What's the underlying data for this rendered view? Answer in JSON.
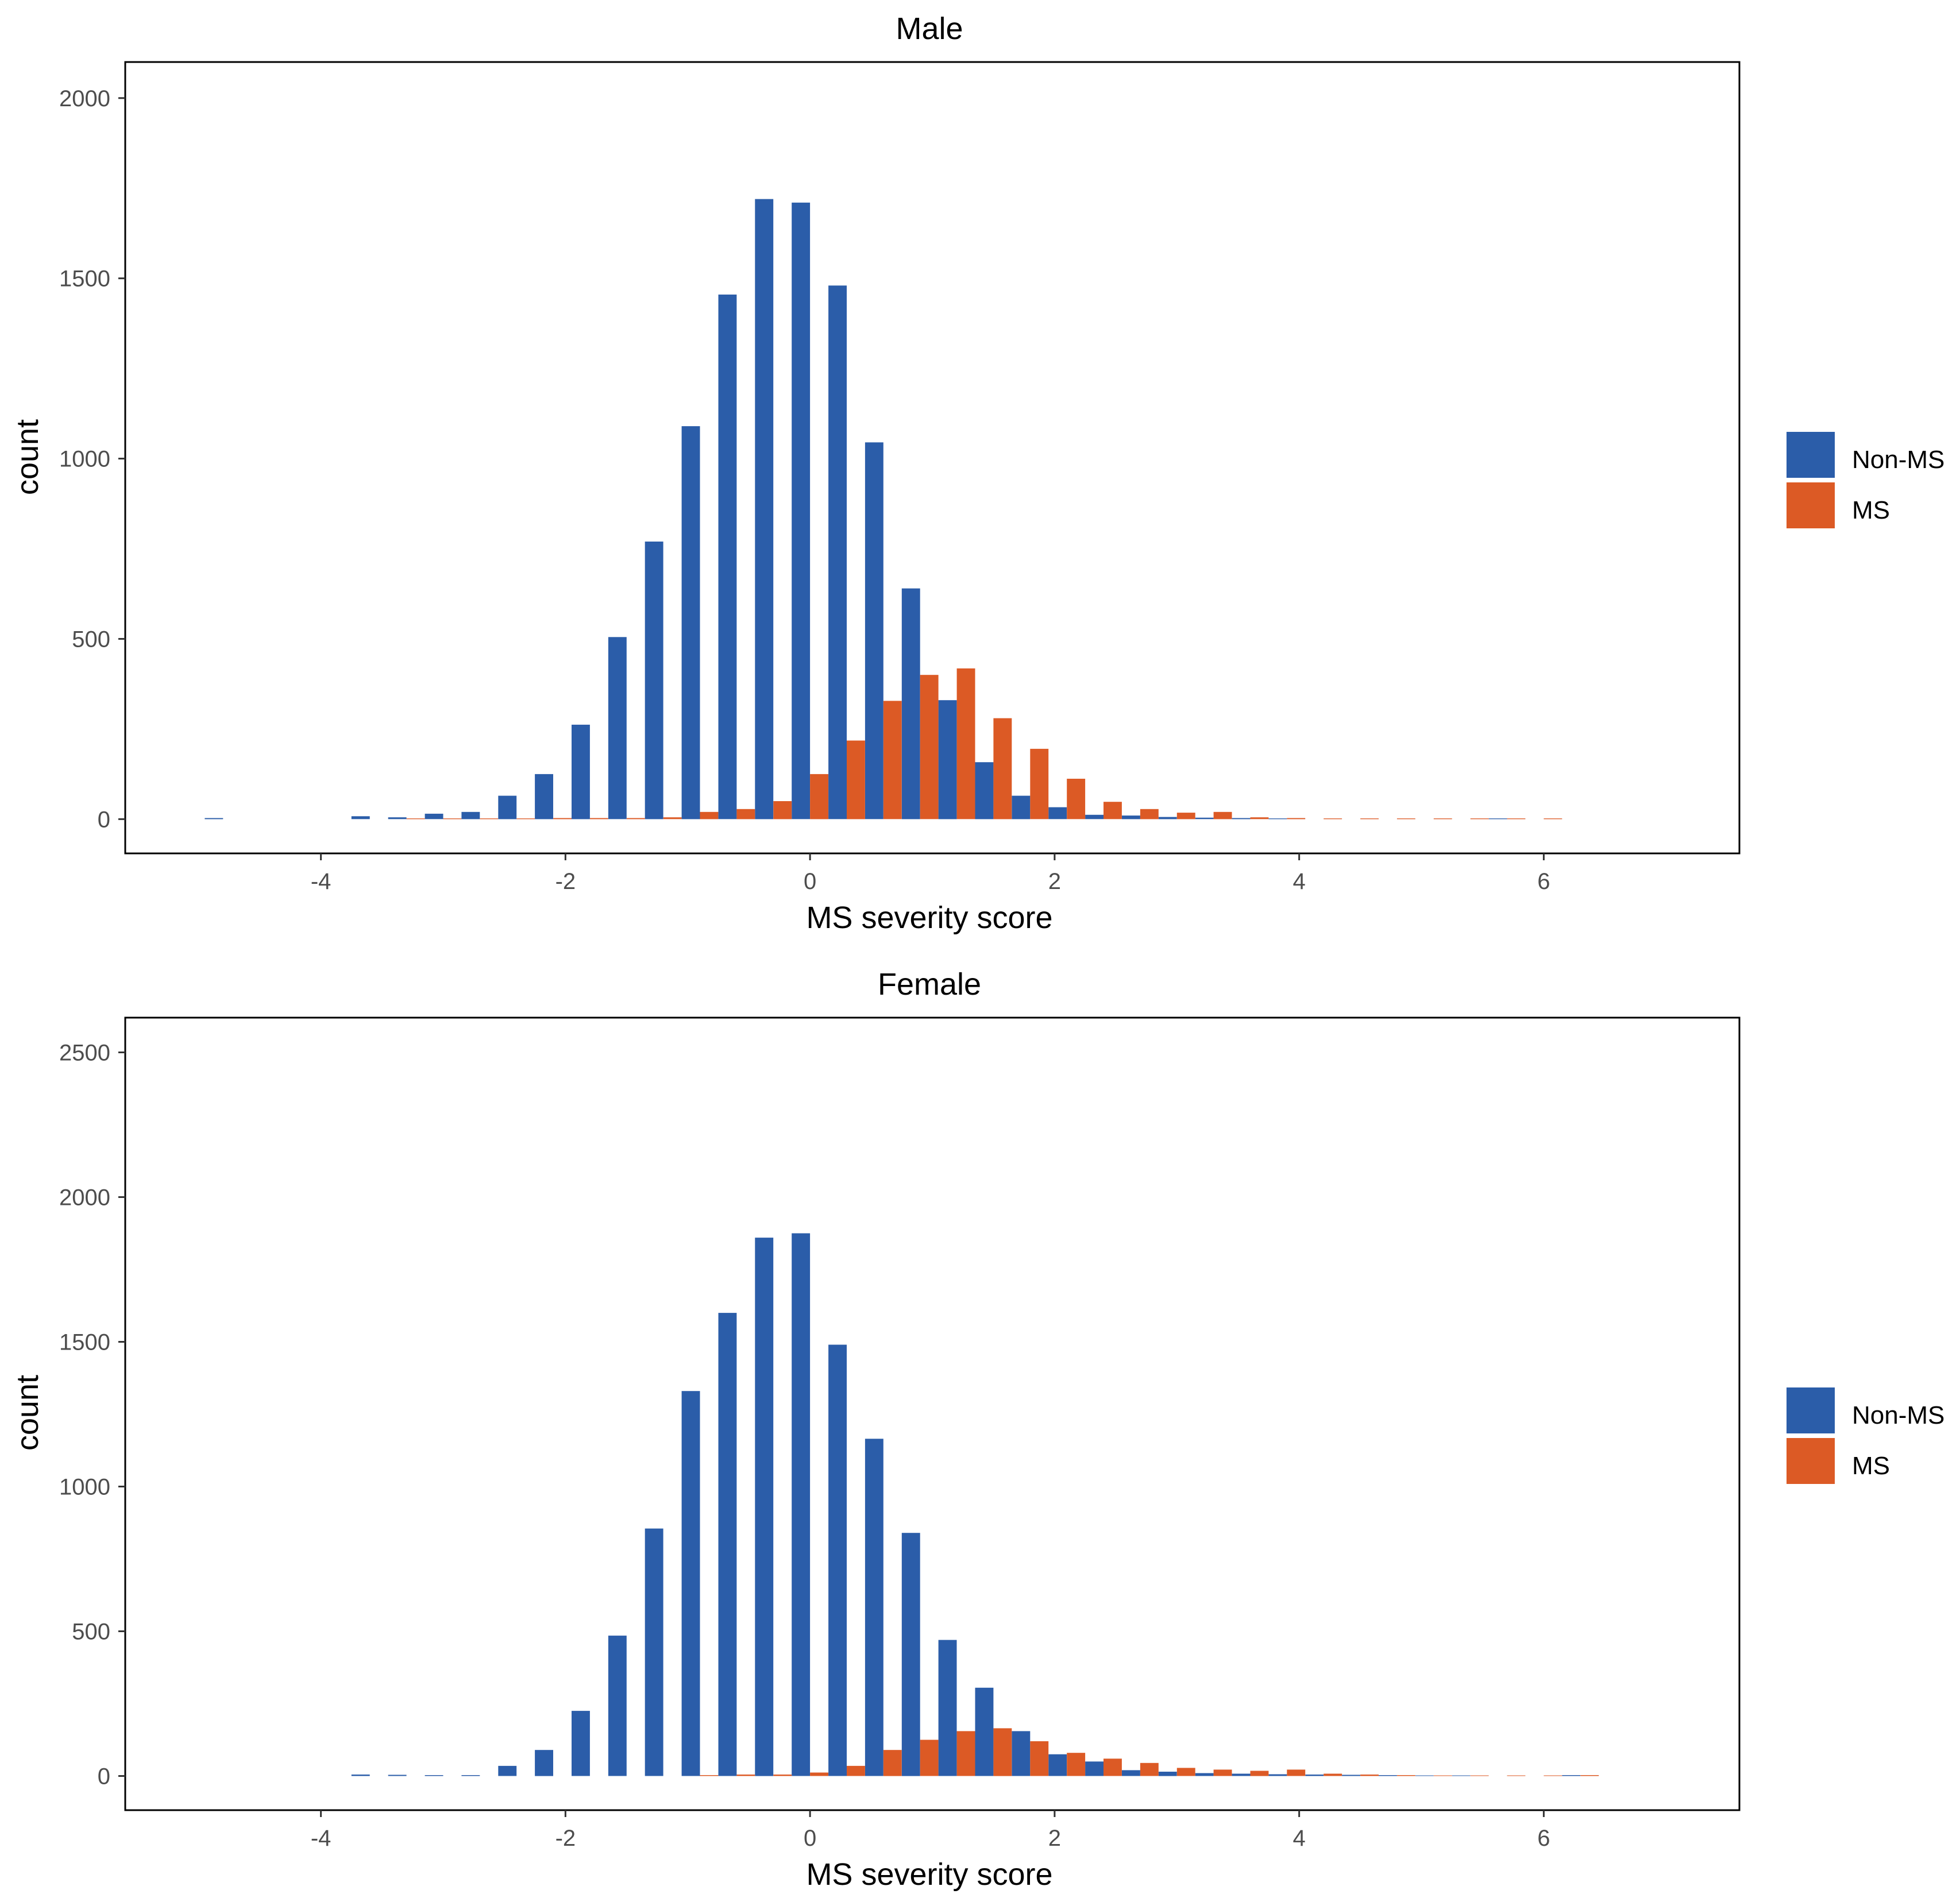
{
  "colors": {
    "non_ms": "#2B5DA9",
    "ms": "#DC5A25",
    "axis": "#000000",
    "tick_text": "#4D4D4D",
    "text": "#000000"
  },
  "legend": {
    "labels": [
      "Non-MS",
      "MS"
    ]
  },
  "chart_data": [
    {
      "type": "bar",
      "title": "Male",
      "xlabel": "MS severity score",
      "ylabel": "count",
      "xlim": [
        -5.6,
        7.6
      ],
      "ylim": [
        -95,
        2100
      ],
      "xticks": [
        -4,
        -2,
        0,
        2,
        4,
        6
      ],
      "xtick_labels": [
        "-4",
        "-2",
        "0",
        "2",
        "4",
        "6"
      ],
      "yticks": [
        0,
        500,
        1000,
        1500,
        2000
      ],
      "ytick_labels": [
        "0",
        "500",
        "1000",
        "1500",
        "2000"
      ],
      "bin_width": 0.3,
      "x": [
        -4.8,
        -4.5,
        -4.2,
        -3.9,
        -3.6,
        -3.3,
        -3.0,
        -2.7,
        -2.4,
        -2.1,
        -1.8,
        -1.5,
        -1.2,
        -0.9,
        -0.6,
        -0.3,
        0.0,
        0.3,
        0.6,
        0.9,
        1.2,
        1.5,
        1.8,
        2.1,
        2.4,
        2.7,
        3.0,
        3.3,
        3.6,
        3.9,
        4.2,
        4.5,
        4.8,
        5.1,
        5.4,
        5.7,
        6.0
      ],
      "series": [
        {
          "name": "Non-MS",
          "values": [
            3,
            0,
            0,
            0,
            8,
            5,
            15,
            20,
            65,
            125,
            262,
            505,
            770,
            1090,
            1455,
            1720,
            1710,
            1480,
            1045,
            640,
            330,
            158,
            65,
            33,
            12,
            10,
            6,
            4,
            3,
            2,
            0,
            0,
            0,
            0,
            0,
            2,
            0
          ]
        },
        {
          "name": "MS",
          "values": [
            0,
            0,
            0,
            0,
            0,
            2,
            2,
            2,
            2,
            3,
            3,
            3,
            5,
            20,
            28,
            50,
            125,
            218,
            328,
            400,
            418,
            280,
            195,
            112,
            48,
            28,
            18,
            20,
            5,
            3,
            2,
            2,
            2,
            2,
            2,
            2,
            2
          ]
        }
      ]
    },
    {
      "type": "bar",
      "title": "Female",
      "xlabel": "MS severity score",
      "ylabel": "count",
      "xlim": [
        -5.6,
        7.6
      ],
      "ylim": [
        -118,
        2620
      ],
      "xticks": [
        -4,
        -2,
        0,
        2,
        4,
        6
      ],
      "xtick_labels": [
        "-4",
        "-2",
        "0",
        "2",
        "4",
        "6"
      ],
      "yticks": [
        0,
        500,
        1000,
        1500,
        2000,
        2500
      ],
      "ytick_labels": [
        "0",
        "500",
        "1000",
        "1500",
        "2000",
        "2500"
      ],
      "bin_width": 0.3,
      "x": [
        -3.6,
        -3.3,
        -3.0,
        -2.7,
        -2.4,
        -2.1,
        -1.8,
        -1.5,
        -1.2,
        -0.9,
        -0.6,
        -0.3,
        0.0,
        0.3,
        0.6,
        0.9,
        1.2,
        1.5,
        1.8,
        2.1,
        2.4,
        2.7,
        3.0,
        3.3,
        3.6,
        3.9,
        4.2,
        4.5,
        4.8,
        5.1,
        5.4,
        5.7,
        6.0,
        6.3
      ],
      "series": [
        {
          "name": "Non-MS",
          "values": [
            5,
            4,
            3,
            3,
            35,
            90,
            225,
            485,
            855,
            1330,
            1600,
            1860,
            1875,
            1490,
            1165,
            840,
            470,
            305,
            155,
            75,
            50,
            20,
            15,
            10,
            8,
            6,
            5,
            4,
            3,
            2,
            2,
            0,
            0,
            3
          ]
        },
        {
          "name": "MS",
          "values": [
            0,
            0,
            0,
            0,
            0,
            0,
            0,
            0,
            0,
            3,
            5,
            5,
            12,
            35,
            90,
            125,
            155,
            165,
            120,
            80,
            60,
            45,
            28,
            22,
            18,
            22,
            8,
            5,
            3,
            2,
            2,
            2,
            2,
            3
          ]
        }
      ]
    }
  ]
}
